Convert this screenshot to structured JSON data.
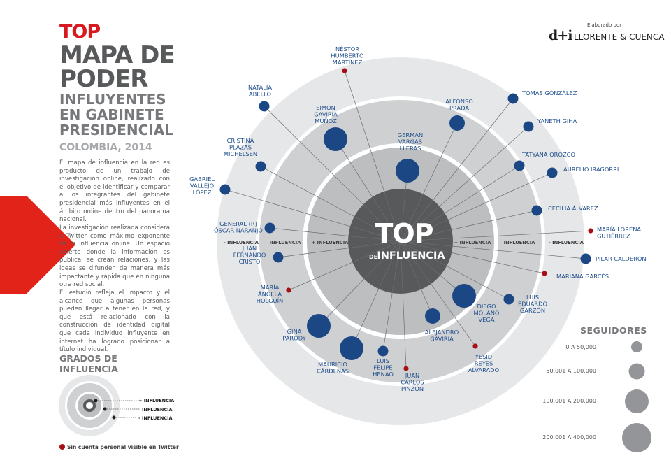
{
  "title": {
    "top": "TOP",
    "line1": "MAPA DE",
    "line2": "PODER",
    "sub1": "INFLUYENTES",
    "sub2": "EN GABINETE",
    "sub3": "PRESIDENCIAL",
    "country": "COLOMBIA, 2014"
  },
  "paragraphs": [
    "El mapa de influencia en la red es producto de un trabajo de investigación online, realizado con el objetivo de identificar y comparar a los integrantes del gabinete presidencial más influyentes en el ámbito online dentro del panorama nacional.",
    "La investigación realizada considera a Twitter como máximo exponente de la influencia online. Un espacio abierto donde la información es pública, se crean relaciones, y las ideas se difunden de manera más impactante y rápida que en ninguna otra red social.",
    "El estudio refleja el impacto y el alcance que algunas personas pueden llegar a tener en la red, y que está relacionado con la construcción de identidad digital que cada individuo influyente en internet ha logrado posicionar a título individual."
  ],
  "brand": {
    "elaborated_by": "Elaborado por",
    "mark": "d+i",
    "name": "LLORENTE & CUENCA"
  },
  "center": {
    "top": "TOP",
    "de": "DE",
    "influencia": "INFLUENCIA"
  },
  "ring_labels": {
    "left_outer": "- INFLUENCIA",
    "left_mid": "INFLUENCIA",
    "left_inner": "+ INFLUENCIA",
    "right_inner": "+ INFLUENCIA",
    "right_mid": "INFLUENCIA",
    "right_outer": "- INFLUENCIA"
  },
  "grados": {
    "title_line1": "GRADOS DE",
    "title_line2": "INFLUENCIA",
    "plus": "+ INFLUENCIA",
    "mid": "INFLUENCIA",
    "minus": "- INFLUENCIA"
  },
  "note": "Sin cuenta personal visible en Twitter",
  "followers": {
    "title": "SEGUIDORES",
    "bins": [
      "0 A 50,000",
      "50,001 A 100,000",
      "100,001 A 200,000",
      "200,001 A 400,000"
    ]
  },
  "colors": {
    "accent": "#d71920",
    "node": "#1b4885",
    "no_account": "#a50f15",
    "ring_outer": "#e6e7e8",
    "ring_mid": "#cfd0d2",
    "ring_inner": "#bcbec0",
    "core": "#58595b"
  },
  "nodes": [
    {
      "id": "nestor",
      "label": [
        "NÉSTOR",
        "HUMBERTO",
        "MARTÍNEZ"
      ],
      "ring": "outer",
      "followers_bin": 0,
      "no_account": true
    },
    {
      "id": "natalia",
      "label": [
        "NATALIA",
        "ABELLO"
      ],
      "ring": "outer",
      "followers_bin": 1,
      "no_account": false
    },
    {
      "id": "simon",
      "label": [
        "SIMÓN",
        "GAVIRIA",
        "MUÑOZ"
      ],
      "ring": "middle",
      "followers_bin": 3,
      "no_account": false
    },
    {
      "id": "alfonso",
      "label": [
        "ALFONSO",
        "PRADA"
      ],
      "ring": "middle",
      "followers_bin": 2,
      "no_account": false
    },
    {
      "id": "tomas",
      "label": [
        "TOMÁS GONZÁLEZ"
      ],
      "ring": "outer",
      "followers_bin": 1,
      "no_account": false
    },
    {
      "id": "yaneth",
      "label": [
        "YANETH GIHA"
      ],
      "ring": "outer",
      "followers_bin": 1,
      "no_account": false
    },
    {
      "id": "german",
      "label": [
        "GERMÁN",
        "VARGAS",
        "LLERAS"
      ],
      "ring": "inner",
      "followers_bin": 3,
      "no_account": false
    },
    {
      "id": "cristina",
      "label": [
        "CRISTINA",
        "PLAZAS",
        "MICHELSEN"
      ],
      "ring": "outer",
      "followers_bin": 1,
      "no_account": false
    },
    {
      "id": "tatyana",
      "label": [
        "TATYANA OROZCO"
      ],
      "ring": "outer",
      "followers_bin": 1,
      "no_account": false
    },
    {
      "id": "aurelio",
      "label": [
        "AURELIO IRAGORRI"
      ],
      "ring": "outer",
      "followers_bin": 1,
      "no_account": false
    },
    {
      "id": "gabriel",
      "label": [
        "GABRIEL",
        "VALLEJO",
        "LÓPEZ"
      ],
      "ring": "outer",
      "followers_bin": 1,
      "no_account": false
    },
    {
      "id": "cecilia",
      "label": [
        "CECILIA ÁLVAREZ"
      ],
      "ring": "outer",
      "followers_bin": 1,
      "no_account": false
    },
    {
      "id": "naranjo",
      "label": [
        "GENERAL (R)",
        "ÓSCAR NARANJO"
      ],
      "ring": "outer",
      "followers_bin": 1,
      "no_account": false
    },
    {
      "id": "maria_lorena",
      "label": [
        "MARÍA LORENA",
        "GUTIÉRREZ"
      ],
      "ring": "outside",
      "followers_bin": 0,
      "no_account": true
    },
    {
      "id": "juan_fernando",
      "label": [
        "JUAN",
        "FERNANDO",
        "CRISTO"
      ],
      "ring": "outer",
      "followers_bin": 1,
      "no_account": false
    },
    {
      "id": "pilar",
      "label": [
        "PILAR CALDERÓN"
      ],
      "ring": "outside",
      "followers_bin": 1,
      "no_account": false
    },
    {
      "id": "mariana",
      "label": [
        "MARIANA GARCÉS"
      ],
      "ring": "outer",
      "followers_bin": 0,
      "no_account": true
    },
    {
      "id": "maria_angela",
      "label": [
        "MARÍA",
        "ÁNGELA",
        "HOLGUÍN"
      ],
      "ring": "outer",
      "followers_bin": 0,
      "no_account": true
    },
    {
      "id": "luis_eduardo",
      "label": [
        "LUIS",
        "EDUARDO",
        "GARZÓN"
      ],
      "ring": "outer",
      "followers_bin": 1,
      "no_account": false
    },
    {
      "id": "diego",
      "label": [
        "DIEGO",
        "MOLANO",
        "VEGA"
      ],
      "ring": "middle",
      "followers_bin": 3,
      "no_account": false
    },
    {
      "id": "gina",
      "label": [
        "GINA",
        "PARODY"
      ],
      "ring": "middle",
      "followers_bin": 3,
      "no_account": false
    },
    {
      "id": "alejandro",
      "label": [
        "ALEJANDRO",
        "GAVIRIA"
      ],
      "ring": "middle",
      "followers_bin": 2,
      "no_account": false
    },
    {
      "id": "mauricio",
      "label": [
        "MAURICIO",
        "CÁRDENAS"
      ],
      "ring": "middle",
      "followers_bin": 3,
      "no_account": false
    },
    {
      "id": "luis_felipe",
      "label": [
        "LUIS",
        "FELIPE",
        "HENAO"
      ],
      "ring": "middle",
      "followers_bin": 1,
      "no_account": false
    },
    {
      "id": "juan_carlos",
      "label": [
        "JUAN",
        "CARLOS",
        "PINZÓN"
      ],
      "ring": "outer",
      "followers_bin": 0,
      "no_account": true
    },
    {
      "id": "yesid",
      "label": [
        "YESID",
        "REYES",
        "ALVARADO"
      ],
      "ring": "outer",
      "followers_bin": 0,
      "no_account": true
    }
  ]
}
